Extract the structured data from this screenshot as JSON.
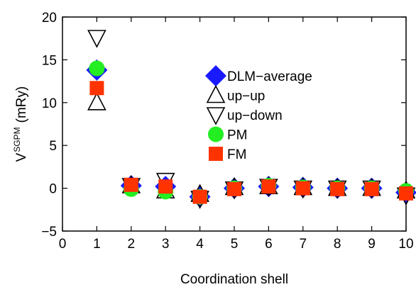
{
  "chart_data": {
    "type": "scatter",
    "xlabel": "Coordination shell",
    "ylabel_main": "V",
    "ylabel_sup": "SGPM",
    "ylabel_unit": "(mRy)",
    "xlim": [
      0,
      10
    ],
    "ylim": [
      -5,
      20
    ],
    "xticks": [
      0,
      1,
      2,
      3,
      4,
      5,
      6,
      7,
      8,
      9,
      10
    ],
    "yticks": [
      -5,
      0,
      5,
      10,
      15,
      20
    ],
    "ytick_labels": [
      "−5",
      "0",
      "5",
      "10",
      "15",
      "20"
    ],
    "grid": false,
    "legend_position": "right",
    "series": [
      {
        "name": "DLM−average",
        "marker": "diamond",
        "color": "#1a1aff",
        "x": [
          1,
          2,
          3,
          4,
          5,
          6,
          7,
          8,
          9,
          10
        ],
        "y": [
          13.8,
          0.3,
          0.2,
          -1.0,
          0.0,
          0.2,
          0.1,
          0.0,
          0.0,
          -0.5
        ]
      },
      {
        "name": "up−up",
        "marker": "triangle-up",
        "color": "#000000",
        "x": [
          1,
          2,
          3,
          4,
          5,
          6,
          7,
          8,
          9,
          10
        ],
        "y": [
          10.0,
          0.3,
          -0.3,
          -0.7,
          0.1,
          0.2,
          0.1,
          0.0,
          0.0,
          -0.3
        ]
      },
      {
        "name": "up−down",
        "marker": "triangle-down",
        "color": "#000000",
        "x": [
          1,
          2,
          3,
          4,
          5,
          6,
          7,
          8,
          9,
          10
        ],
        "y": [
          17.6,
          0.3,
          0.9,
          -1.2,
          -0.1,
          0.2,
          0.0,
          0.0,
          0.0,
          -0.8
        ]
      },
      {
        "name": "PM",
        "marker": "circle",
        "color": "#22ee22",
        "x": [
          1,
          2,
          3,
          4,
          5,
          6,
          7,
          8,
          9,
          10
        ],
        "y": [
          14.0,
          -0.1,
          -0.4,
          -1.0,
          0.0,
          0.3,
          0.1,
          0.0,
          0.0,
          -0.3
        ]
      },
      {
        "name": "FM",
        "marker": "square",
        "color": "#ff3300",
        "x": [
          1,
          2,
          3,
          4,
          5,
          6,
          7,
          8,
          9,
          10
        ],
        "y": [
          11.7,
          0.4,
          0.2,
          -1.0,
          -0.1,
          0.2,
          0.0,
          -0.1,
          -0.1,
          -0.6
        ]
      }
    ]
  }
}
